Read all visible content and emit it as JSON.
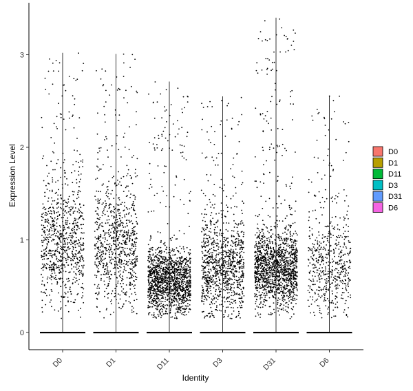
{
  "chart_data": {
    "type": "scatter",
    "subtype": "violin-jitter",
    "title": "",
    "xlabel": "Identity",
    "ylabel": "Expression Level",
    "categories": [
      "D0",
      "D1",
      "D11",
      "D3",
      "D31",
      "D6"
    ],
    "ylim": [
      -0.2,
      3.55
    ],
    "yticks": [
      0,
      1,
      2,
      3
    ],
    "grid": false,
    "legend_position": "right",
    "series": [
      {
        "name": "D0",
        "color": "#F8766D",
        "max": 3.02,
        "density": 0.85,
        "upper_density": 0.35,
        "center": 0.95,
        "spread": 0.6
      },
      {
        "name": "D1",
        "color": "#B79F00",
        "max": 3.01,
        "density": 0.85,
        "upper_density": 0.35,
        "center": 0.95,
        "spread": 0.6
      },
      {
        "name": "D11",
        "color": "#00BA38",
        "max": 2.71,
        "density": 1.6,
        "upper_density": 0.35,
        "center": 0.55,
        "spread": 0.35
      },
      {
        "name": "D3",
        "color": "#00BFC4",
        "max": 2.55,
        "density": 1.1,
        "upper_density": 0.25,
        "center": 0.7,
        "spread": 0.55
      },
      {
        "name": "D31",
        "color": "#619CFF",
        "max": 3.4,
        "density": 1.6,
        "upper_density": 0.45,
        "center": 0.7,
        "spread": 0.4
      },
      {
        "name": "D6",
        "color": "#F564E3",
        "max": 2.56,
        "density": 0.6,
        "upper_density": 0.2,
        "center": 0.7,
        "spread": 0.55
      }
    ]
  }
}
